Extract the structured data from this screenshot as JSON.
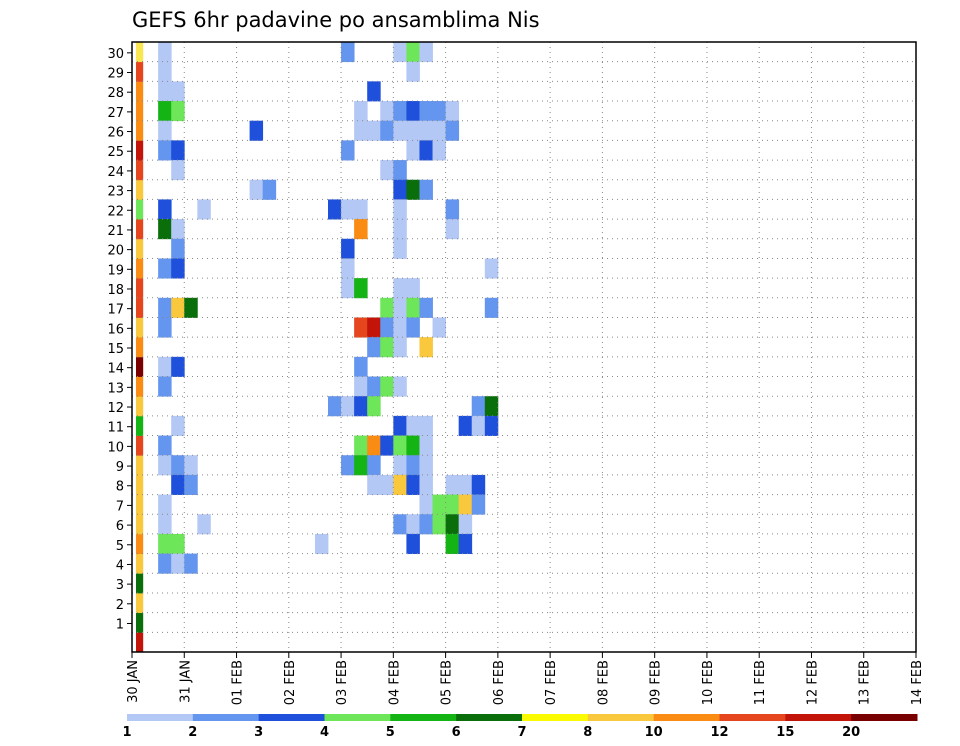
{
  "title": "GEFS 6hr padavine po ansamblima Nis",
  "chart_data": {
    "type": "heatmap",
    "title": "GEFS 6hr padavine po ansamblima Nis",
    "x_tick_labels": [
      "30 JAN",
      "31 JAN",
      "01 FEB",
      "02 FEB",
      "03 FEB",
      "04 FEB",
      "05 FEB",
      "06 FEB",
      "07 FEB",
      "08 FEB",
      "09 FEB",
      "10 FEB",
      "11 FEB",
      "12 FEB",
      "13 FEB",
      "14 FEB"
    ],
    "y_tick_labels": [
      "1",
      "2",
      "3",
      "4",
      "5",
      "6",
      "7",
      "8",
      "9",
      "10",
      "11",
      "12",
      "13",
      "14",
      "15",
      "16",
      "17",
      "18",
      "19",
      "20",
      "21",
      "22",
      "23",
      "24",
      "25",
      "26",
      "27",
      "28",
      "29",
      "30"
    ],
    "ylim": [
      0,
      30
    ],
    "x_step_hours": 6,
    "grid": true,
    "colorbar": {
      "labels": [
        "1",
        "2",
        "3",
        "4",
        "5",
        "6",
        "7",
        "8",
        "10",
        "12",
        "15",
        "20"
      ],
      "colors": [
        "#b4c8f5",
        "#6496f0",
        "#1e50dc",
        "#6ee65a",
        "#14b414",
        "#0a6e0a",
        "#fafa00",
        "#fac83c",
        "#fa8c14",
        "#e6461e",
        "#c3140a",
        "#780000"
      ]
    },
    "ensemble_total_column": [
      "#c3140a",
      "#0a6e0a",
      "#fac83c",
      "#0a6e0a",
      "#fac83c",
      "#fa8c14",
      "#fac83c",
      "#fac83c",
      "#fac83c",
      "#fac83c",
      "#e6461e",
      "#14b414",
      "#fac83c",
      "#fa8c14",
      "#780000",
      "#fa8c14",
      "#fac83c",
      "#e6461e",
      "#e6461e",
      "#fa8c14",
      "#fac83c",
      "#e6461e",
      "#6ee65a",
      "#fac83c",
      "#e6461e",
      "#c3140a",
      "#fa8c14",
      "#fa8c14",
      "#fa8c14",
      "#e6461e",
      "#fae650"
    ],
    "cells": [
      {
        "x": 2,
        "y": 30,
        "c": 1
      },
      {
        "x": 16,
        "y": 30,
        "c": 2
      },
      {
        "x": 20,
        "y": 30,
        "c": 1
      },
      {
        "x": 21,
        "y": 30,
        "c": 4
      },
      {
        "x": 22,
        "y": 30,
        "c": 1
      },
      {
        "x": 2,
        "y": 29,
        "c": 1
      },
      {
        "x": 21,
        "y": 29,
        "c": 1
      },
      {
        "x": 2,
        "y": 28,
        "c": 1
      },
      {
        "x": 3,
        "y": 28,
        "c": 1
      },
      {
        "x": 18,
        "y": 28,
        "c": 3
      },
      {
        "x": 2,
        "y": 27,
        "c": 5
      },
      {
        "x": 3,
        "y": 27,
        "c": 4
      },
      {
        "x": 17,
        "y": 27,
        "c": 1
      },
      {
        "x": 19,
        "y": 27,
        "c": 1
      },
      {
        "x": 20,
        "y": 27,
        "c": 2
      },
      {
        "x": 21,
        "y": 27,
        "c": 3
      },
      {
        "x": 22,
        "y": 27,
        "c": 2
      },
      {
        "x": 23,
        "y": 27,
        "c": 2
      },
      {
        "x": 24,
        "y": 27,
        "c": 1
      },
      {
        "x": 2,
        "y": 26,
        "c": 1
      },
      {
        "x": 9,
        "y": 26,
        "c": 3
      },
      {
        "x": 17,
        "y": 26,
        "c": 1
      },
      {
        "x": 18,
        "y": 26,
        "c": 1
      },
      {
        "x": 19,
        "y": 26,
        "c": 2
      },
      {
        "x": 20,
        "y": 26,
        "c": 1
      },
      {
        "x": 21,
        "y": 26,
        "c": 1
      },
      {
        "x": 22,
        "y": 26,
        "c": 1
      },
      {
        "x": 23,
        "y": 26,
        "c": 1
      },
      {
        "x": 24,
        "y": 26,
        "c": 2
      },
      {
        "x": 2,
        "y": 25,
        "c": 2
      },
      {
        "x": 3,
        "y": 25,
        "c": 3
      },
      {
        "x": 16,
        "y": 25,
        "c": 2
      },
      {
        "x": 21,
        "y": 25,
        "c": 1
      },
      {
        "x": 22,
        "y": 25,
        "c": 3
      },
      {
        "x": 23,
        "y": 25,
        "c": 1
      },
      {
        "x": 3,
        "y": 24,
        "c": 1
      },
      {
        "x": 19,
        "y": 24,
        "c": 1
      },
      {
        "x": 20,
        "y": 24,
        "c": 2
      },
      {
        "x": 9,
        "y": 23,
        "c": 1
      },
      {
        "x": 10,
        "y": 23,
        "c": 2
      },
      {
        "x": 20,
        "y": 23,
        "c": 3
      },
      {
        "x": 21,
        "y": 23,
        "c": 6
      },
      {
        "x": 22,
        "y": 23,
        "c": 2
      },
      {
        "x": 2,
        "y": 22,
        "c": 3
      },
      {
        "x": 5,
        "y": 22,
        "c": 1
      },
      {
        "x": 15,
        "y": 22,
        "c": 3
      },
      {
        "x": 16,
        "y": 22,
        "c": 1
      },
      {
        "x": 17,
        "y": 22,
        "c": 1
      },
      {
        "x": 20,
        "y": 22,
        "c": 1
      },
      {
        "x": 24,
        "y": 22,
        "c": 2
      },
      {
        "x": 2,
        "y": 21,
        "c": 6
      },
      {
        "x": 3,
        "y": 21,
        "c": 1
      },
      {
        "x": 17,
        "y": 21,
        "c": 9
      },
      {
        "x": 20,
        "y": 21,
        "c": 1
      },
      {
        "x": 24,
        "y": 21,
        "c": 1
      },
      {
        "x": 3,
        "y": 20,
        "c": 2
      },
      {
        "x": 16,
        "y": 20,
        "c": 3
      },
      {
        "x": 20,
        "y": 20,
        "c": 1
      },
      {
        "x": 2,
        "y": 19,
        "c": 2
      },
      {
        "x": 3,
        "y": 19,
        "c": 3
      },
      {
        "x": 16,
        "y": 19,
        "c": 1
      },
      {
        "x": 27,
        "y": 19,
        "c": 1
      },
      {
        "x": 16,
        "y": 18,
        "c": 1
      },
      {
        "x": 17,
        "y": 18,
        "c": 5
      },
      {
        "x": 20,
        "y": 18,
        "c": 1
      },
      {
        "x": 21,
        "y": 18,
        "c": 1
      },
      {
        "x": 2,
        "y": 17,
        "c": 2
      },
      {
        "x": 3,
        "y": 17,
        "c": 8
      },
      {
        "x": 4,
        "y": 17,
        "c": 6
      },
      {
        "x": 19,
        "y": 17,
        "c": 4
      },
      {
        "x": 20,
        "y": 17,
        "c": 1
      },
      {
        "x": 21,
        "y": 17,
        "c": 4
      },
      {
        "x": 22,
        "y": 17,
        "c": 2
      },
      {
        "x": 27,
        "y": 17,
        "c": 2
      },
      {
        "x": 2,
        "y": 16,
        "c": 2
      },
      {
        "x": 17,
        "y": 16,
        "c": 10
      },
      {
        "x": 18,
        "y": 16,
        "c": 11
      },
      {
        "x": 19,
        "y": 16,
        "c": 2
      },
      {
        "x": 20,
        "y": 16,
        "c": 1
      },
      {
        "x": 21,
        "y": 16,
        "c": 2
      },
      {
        "x": 23,
        "y": 16,
        "c": 1
      },
      {
        "x": 18,
        "y": 15,
        "c": 2
      },
      {
        "x": 19,
        "y": 15,
        "c": 4
      },
      {
        "x": 20,
        "y": 15,
        "c": 1
      },
      {
        "x": 22,
        "y": 15,
        "c": 8
      },
      {
        "x": 2,
        "y": 14,
        "c": 1
      },
      {
        "x": 3,
        "y": 14,
        "c": 3
      },
      {
        "x": 17,
        "y": 14,
        "c": 2
      },
      {
        "x": 2,
        "y": 13,
        "c": 2
      },
      {
        "x": 17,
        "y": 13,
        "c": 1
      },
      {
        "x": 18,
        "y": 13,
        "c": 2
      },
      {
        "x": 19,
        "y": 13,
        "c": 4
      },
      {
        "x": 20,
        "y": 13,
        "c": 1
      },
      {
        "x": 15,
        "y": 12,
        "c": 2
      },
      {
        "x": 16,
        "y": 12,
        "c": 1
      },
      {
        "x": 17,
        "y": 12,
        "c": 3
      },
      {
        "x": 18,
        "y": 12,
        "c": 4
      },
      {
        "x": 26,
        "y": 12,
        "c": 2
      },
      {
        "x": 27,
        "y": 12,
        "c": 6
      },
      {
        "x": 3,
        "y": 11,
        "c": 1
      },
      {
        "x": 20,
        "y": 11,
        "c": 3
      },
      {
        "x": 21,
        "y": 11,
        "c": 1
      },
      {
        "x": 22,
        "y": 11,
        "c": 1
      },
      {
        "x": 25,
        "y": 11,
        "c": 3
      },
      {
        "x": 26,
        "y": 11,
        "c": 1
      },
      {
        "x": 27,
        "y": 11,
        "c": 3
      },
      {
        "x": 2,
        "y": 10,
        "c": 2
      },
      {
        "x": 17,
        "y": 10,
        "c": 4
      },
      {
        "x": 18,
        "y": 10,
        "c": 9
      },
      {
        "x": 19,
        "y": 10,
        "c": 3
      },
      {
        "x": 20,
        "y": 10,
        "c": 4
      },
      {
        "x": 21,
        "y": 10,
        "c": 5
      },
      {
        "x": 22,
        "y": 10,
        "c": 1
      },
      {
        "x": 2,
        "y": 9,
        "c": 1
      },
      {
        "x": 3,
        "y": 9,
        "c": 2
      },
      {
        "x": 4,
        "y": 9,
        "c": 1
      },
      {
        "x": 16,
        "y": 9,
        "c": 2
      },
      {
        "x": 17,
        "y": 9,
        "c": 5
      },
      {
        "x": 18,
        "y": 9,
        "c": 2
      },
      {
        "x": 20,
        "y": 9,
        "c": 1
      },
      {
        "x": 21,
        "y": 9,
        "c": 2
      },
      {
        "x": 22,
        "y": 9,
        "c": 1
      },
      {
        "x": 3,
        "y": 8,
        "c": 3
      },
      {
        "x": 4,
        "y": 8,
        "c": 2
      },
      {
        "x": 18,
        "y": 8,
        "c": 1
      },
      {
        "x": 19,
        "y": 8,
        "c": 1
      },
      {
        "x": 20,
        "y": 8,
        "c": 8
      },
      {
        "x": 21,
        "y": 8,
        "c": 3
      },
      {
        "x": 22,
        "y": 8,
        "c": 1
      },
      {
        "x": 24,
        "y": 8,
        "c": 1
      },
      {
        "x": 25,
        "y": 8,
        "c": 1
      },
      {
        "x": 26,
        "y": 8,
        "c": 3
      },
      {
        "x": 2,
        "y": 7,
        "c": 1
      },
      {
        "x": 22,
        "y": 7,
        "c": 1
      },
      {
        "x": 23,
        "y": 7,
        "c": 4
      },
      {
        "x": 24,
        "y": 7,
        "c": 4
      },
      {
        "x": 25,
        "y": 7,
        "c": 8
      },
      {
        "x": 26,
        "y": 7,
        "c": 2
      },
      {
        "x": 2,
        "y": 6,
        "c": 1
      },
      {
        "x": 5,
        "y": 6,
        "c": 1
      },
      {
        "x": 20,
        "y": 6,
        "c": 2
      },
      {
        "x": 21,
        "y": 6,
        "c": 1
      },
      {
        "x": 22,
        "y": 6,
        "c": 2
      },
      {
        "x": 23,
        "y": 6,
        "c": 4
      },
      {
        "x": 24,
        "y": 6,
        "c": 6
      },
      {
        "x": 25,
        "y": 6,
        "c": 1
      },
      {
        "x": 2,
        "y": 5,
        "c": 4
      },
      {
        "x": 3,
        "y": 5,
        "c": 4
      },
      {
        "x": 14,
        "y": 5,
        "c": 1
      },
      {
        "x": 21,
        "y": 5,
        "c": 3
      },
      {
        "x": 24,
        "y": 5,
        "c": 5
      },
      {
        "x": 25,
        "y": 5,
        "c": 3
      },
      {
        "x": 2,
        "y": 4,
        "c": 2
      },
      {
        "x": 3,
        "y": 4,
        "c": 1
      },
      {
        "x": 4,
        "y": 4,
        "c": 2
      }
    ]
  }
}
